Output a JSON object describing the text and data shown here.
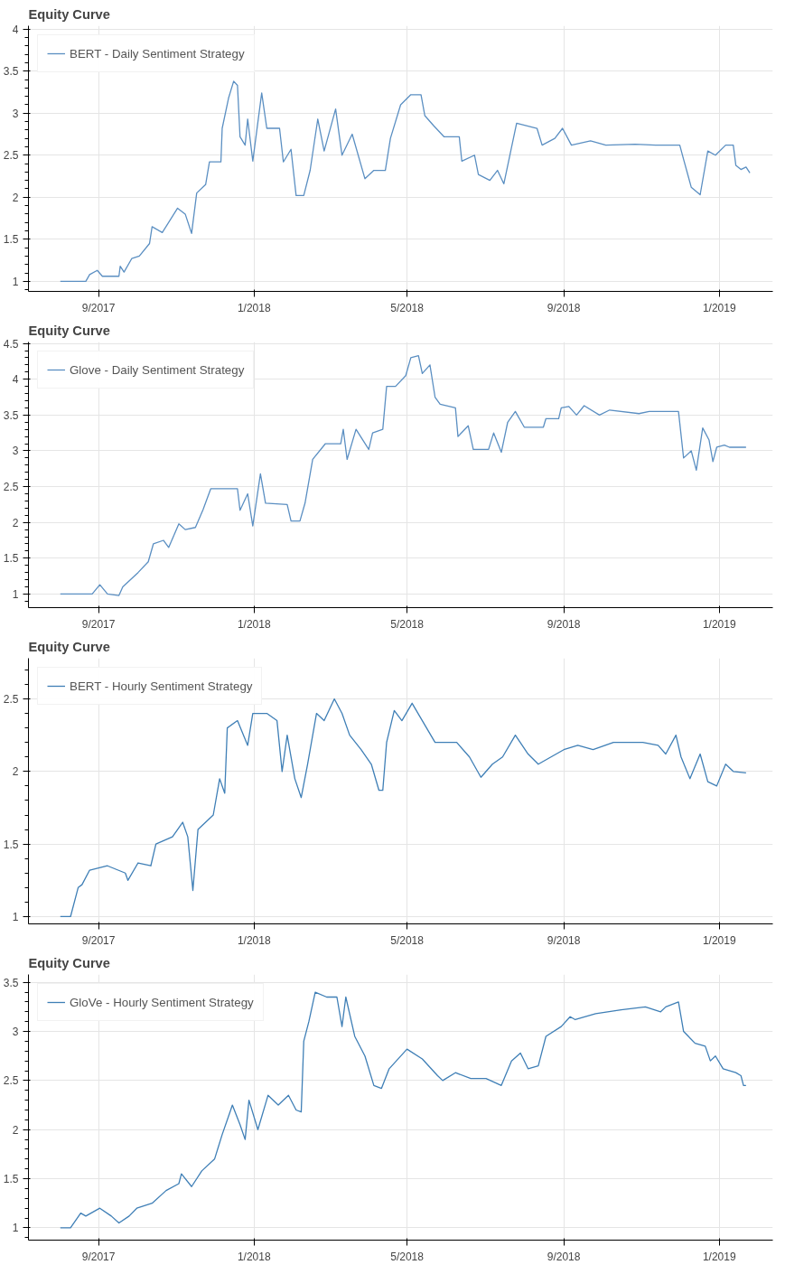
{
  "chart_data": [
    {
      "type": "line",
      "title": "Equity Curve",
      "legend": "top left",
      "grid": true,
      "xlim": [
        "2017-07-08",
        "2019-02-12"
      ],
      "ylim": [
        0.88,
        4.04
      ],
      "yticks": [
        1,
        1.5,
        2,
        2.5,
        3,
        3.5,
        4
      ],
      "xticks": [
        {
          "value": "2017-09-01",
          "label": "9/2017"
        },
        {
          "value": "2018-01-01",
          "label": "1/2018"
        },
        {
          "value": "2018-05-01",
          "label": "5/2018"
        },
        {
          "value": "2018-09-01",
          "label": "9/2018"
        },
        {
          "value": "2019-01-01",
          "label": "1/2019"
        }
      ],
      "series": [
        {
          "name": "BERT - Daily Sentiment Strategy",
          "color": "#5b8fc2",
          "x": [
            "2017-08-02",
            "2017-08-22",
            "2017-08-25",
            "2017-08-31",
            "2017-09-04",
            "2017-09-17",
            "2017-09-18",
            "2017-09-21",
            "2017-09-27",
            "2017-10-03",
            "2017-10-11",
            "2017-10-13",
            "2017-10-21",
            "2017-11-02",
            "2017-11-08",
            "2017-11-13",
            "2017-11-17",
            "2017-11-24",
            "2017-11-27",
            "2017-12-06",
            "2017-12-07",
            "2017-12-12",
            "2017-12-16",
            "2017-12-19",
            "2017-12-21",
            "2017-12-25",
            "2017-12-27",
            "2017-12-31",
            "2018-01-07",
            "2018-01-11",
            "2018-01-21",
            "2018-01-24",
            "2018-01-30",
            "2018-02-03",
            "2018-02-09",
            "2018-02-14",
            "2018-02-20",
            "2018-02-25",
            "2018-03-06",
            "2018-03-11",
            "2018-03-19",
            "2018-03-29",
            "2018-04-05",
            "2018-04-14",
            "2018-04-18",
            "2018-04-26",
            "2018-05-04",
            "2018-05-12",
            "2018-05-15",
            "2018-05-22",
            "2018-05-30",
            "2018-06-11",
            "2018-06-13",
            "2018-06-23",
            "2018-06-26",
            "2018-07-05",
            "2018-07-11",
            "2018-07-16",
            "2018-07-21",
            "2018-07-26",
            "2018-08-11",
            "2018-08-15",
            "2018-08-25",
            "2018-08-31",
            "2018-09-07",
            "2018-09-22",
            "2018-10-04",
            "2018-10-27",
            "2018-11-12",
            "2018-12-01",
            "2018-12-04",
            "2018-12-10",
            "2018-12-17",
            "2018-12-23",
            "2018-12-29",
            "2019-01-06",
            "2019-01-12",
            "2019-01-14",
            "2019-01-18",
            "2019-01-22",
            "2019-01-25"
          ],
          "values": [
            1.0,
            1.0,
            1.08,
            1.13,
            1.06,
            1.06,
            1.18,
            1.11,
            1.27,
            1.3,
            1.45,
            1.65,
            1.58,
            1.87,
            1.8,
            1.57,
            2.05,
            2.15,
            2.42,
            2.42,
            2.82,
            3.18,
            3.38,
            3.33,
            2.72,
            2.62,
            2.93,
            2.43,
            3.24,
            2.82,
            2.82,
            2.42,
            2.57,
            2.02,
            2.02,
            2.32,
            2.93,
            2.55,
            3.05,
            2.5,
            2.75,
            2.22,
            2.32,
            2.32,
            2.7,
            3.1,
            3.22,
            3.22,
            2.97,
            2.85,
            2.72,
            2.72,
            2.43,
            2.5,
            2.27,
            2.2,
            2.32,
            2.16,
            2.52,
            2.88,
            2.82,
            2.62,
            2.7,
            2.82,
            2.62,
            2.67,
            2.62,
            2.63,
            2.62,
            2.62,
            2.45,
            2.12,
            2.03,
            2.55,
            2.5,
            2.62,
            2.62,
            2.38,
            2.33,
            2.36,
            2.29
          ]
        }
      ]
    },
    {
      "type": "line",
      "title": "Equity Curve",
      "legend": "top left",
      "grid": true,
      "xlim": [
        "2017-07-08",
        "2019-02-12"
      ],
      "ylim": [
        0.81,
        4.52
      ],
      "yticks": [
        1,
        1.5,
        2,
        2.5,
        3,
        3.5,
        4,
        4.5
      ],
      "xticks": [
        {
          "value": "2017-09-01",
          "label": "9/2017"
        },
        {
          "value": "2018-01-01",
          "label": "1/2018"
        },
        {
          "value": "2018-05-01",
          "label": "5/2018"
        },
        {
          "value": "2018-09-01",
          "label": "9/2018"
        },
        {
          "value": "2019-01-01",
          "label": "1/2019"
        }
      ],
      "series": [
        {
          "name": "Glove - Daily Sentiment Strategy",
          "color": "#5b8fc2",
          "x": [
            "2017-08-02",
            "2017-08-27",
            "2017-09-02",
            "2017-09-08",
            "2017-09-17",
            "2017-09-20",
            "2017-10-02",
            "2017-10-10",
            "2017-10-14",
            "2017-10-22",
            "2017-10-26",
            "2017-11-03",
            "2017-11-08",
            "2017-11-16",
            "2017-11-22",
            "2017-11-28",
            "2017-12-19",
            "2017-12-21",
            "2017-12-27",
            "2017-12-31",
            "2018-01-06",
            "2018-01-10",
            "2018-01-27",
            "2018-01-30",
            "2018-02-06",
            "2018-02-10",
            "2018-02-16",
            "2018-02-26",
            "2018-03-10",
            "2018-03-12",
            "2018-03-15",
            "2018-03-22",
            "2018-04-01",
            "2018-04-04",
            "2018-04-12",
            "2018-04-15",
            "2018-04-22",
            "2018-04-30",
            "2018-05-04",
            "2018-05-10",
            "2018-05-13",
            "2018-05-19",
            "2018-05-23",
            "2018-05-27",
            "2018-06-08",
            "2018-06-10",
            "2018-06-18",
            "2018-06-22",
            "2018-07-04",
            "2018-07-08",
            "2018-07-14",
            "2018-07-19",
            "2018-07-25",
            "2018-08-01",
            "2018-08-16",
            "2018-08-18",
            "2018-08-28",
            "2018-08-30",
            "2018-09-05",
            "2018-09-11",
            "2018-09-17",
            "2018-09-29",
            "2018-10-07",
            "2018-10-30",
            "2018-11-07",
            "2018-11-30",
            "2018-12-04",
            "2018-12-10",
            "2018-12-14",
            "2018-12-19",
            "2018-12-24",
            "2018-12-27",
            "2018-12-30",
            "2019-01-05",
            "2019-01-09",
            "2019-01-22"
          ],
          "values": [
            1.0,
            1.0,
            1.13,
            1.0,
            0.98,
            1.1,
            1.3,
            1.45,
            1.7,
            1.75,
            1.65,
            1.98,
            1.9,
            1.93,
            2.18,
            2.47,
            2.47,
            2.17,
            2.4,
            1.95,
            2.68,
            2.27,
            2.25,
            2.02,
            2.02,
            2.27,
            2.88,
            3.1,
            3.1,
            3.3,
            2.88,
            3.3,
            3.02,
            3.25,
            3.3,
            3.9,
            3.9,
            4.05,
            4.3,
            4.33,
            4.08,
            4.2,
            3.75,
            3.65,
            3.6,
            3.2,
            3.35,
            3.02,
            3.02,
            3.25,
            2.98,
            3.4,
            3.55,
            3.33,
            3.33,
            3.45,
            3.45,
            3.6,
            3.62,
            3.5,
            3.63,
            3.5,
            3.57,
            3.52,
            3.55,
            3.55,
            2.9,
            3.0,
            2.73,
            3.32,
            3.15,
            2.85,
            3.05,
            3.08,
            3.05,
            3.05
          ]
        }
      ]
    },
    {
      "type": "line",
      "title": "Equity Curve",
      "legend": "top left",
      "grid": true,
      "xlim": [
        "2017-07-08",
        "2019-02-12"
      ],
      "ylim": [
        0.95,
        2.78
      ],
      "yticks": [
        1,
        1.5,
        2,
        2.5
      ],
      "xticks": [
        {
          "value": "2017-09-01",
          "label": "9/2017"
        },
        {
          "value": "2018-01-01",
          "label": "1/2018"
        },
        {
          "value": "2018-05-01",
          "label": "5/2018"
        },
        {
          "value": "2018-09-01",
          "label": "9/2018"
        },
        {
          "value": "2019-01-01",
          "label": "1/2019"
        }
      ],
      "series": [
        {
          "name": "BERT - Hourly Sentiment Strategy",
          "color": "#3f7fb6",
          "x": [
            "2017-08-02",
            "2017-08-10",
            "2017-08-16",
            "2017-08-19",
            "2017-08-25",
            "2017-09-08",
            "2017-09-22",
            "2017-09-24",
            "2017-10-02",
            "2017-10-12",
            "2017-10-16",
            "2017-10-29",
            "2017-11-06",
            "2017-11-10",
            "2017-11-14",
            "2017-11-18",
            "2017-11-30",
            "2017-12-05",
            "2017-12-09",
            "2017-12-11",
            "2017-12-19",
            "2017-12-27",
            "2017-12-31",
            "2018-01-11",
            "2018-01-19",
            "2018-01-23",
            "2018-01-27",
            "2018-02-02",
            "2018-02-07",
            "2018-02-12",
            "2018-02-19",
            "2018-02-25",
            "2018-03-05",
            "2018-03-11",
            "2018-03-17",
            "2018-03-26",
            "2018-04-03",
            "2018-04-09",
            "2018-04-12",
            "2018-04-15",
            "2018-04-21",
            "2018-04-27",
            "2018-05-05",
            "2018-05-13",
            "2018-05-23",
            "2018-06-09",
            "2018-06-19",
            "2018-06-28",
            "2018-07-07",
            "2018-07-15",
            "2018-07-25",
            "2018-08-04",
            "2018-08-12",
            "2018-08-22",
            "2018-09-01",
            "2018-09-12",
            "2018-09-24",
            "2018-10-10",
            "2018-11-02",
            "2018-11-14",
            "2018-11-20",
            "2018-11-28",
            "2018-12-02",
            "2018-12-09",
            "2018-12-17",
            "2018-12-23",
            "2018-12-30",
            "2019-01-06",
            "2019-01-12",
            "2019-01-22"
          ],
          "values": [
            1.0,
            1.0,
            1.2,
            1.22,
            1.32,
            1.35,
            1.3,
            1.25,
            1.37,
            1.35,
            1.5,
            1.55,
            1.65,
            1.55,
            1.18,
            1.6,
            1.7,
            1.95,
            1.85,
            2.3,
            2.35,
            2.18,
            2.4,
            2.4,
            2.35,
            2.0,
            2.25,
            1.95,
            1.82,
            2.05,
            2.4,
            2.35,
            2.5,
            2.4,
            2.25,
            2.15,
            2.05,
            1.87,
            1.87,
            2.2,
            2.42,
            2.35,
            2.47,
            2.35,
            2.2,
            2.2,
            2.1,
            1.96,
            2.05,
            2.1,
            2.25,
            2.12,
            2.05,
            2.1,
            2.15,
            2.18,
            2.15,
            2.2,
            2.2,
            2.18,
            2.12,
            2.25,
            2.1,
            1.95,
            2.12,
            1.93,
            1.9,
            2.05,
            2.0,
            1.99
          ]
        }
      ]
    },
    {
      "type": "line",
      "title": "Equity Curve",
      "legend": "top left",
      "grid": true,
      "xlim": [
        "2017-07-08",
        "2019-02-12"
      ],
      "ylim": [
        0.875,
        3.58
      ],
      "yticks": [
        1,
        1.5,
        2,
        2.5,
        3,
        3.5
      ],
      "xticks": [
        {
          "value": "2017-09-01",
          "label": "9/2017"
        },
        {
          "value": "2018-01-01",
          "label": "1/2018"
        },
        {
          "value": "2018-05-01",
          "label": "5/2018"
        },
        {
          "value": "2018-09-01",
          "label": "9/2018"
        },
        {
          "value": "2019-01-01",
          "label": "1/2019"
        }
      ],
      "series": [
        {
          "name": "GloVe - Hourly Sentiment Strategy",
          "color": "#3f7fb6",
          "x": [
            "2017-08-02",
            "2017-08-10",
            "2017-08-18",
            "2017-08-22",
            "2017-09-02",
            "2017-09-11",
            "2017-09-17",
            "2017-09-25",
            "2017-10-01",
            "2017-10-13",
            "2017-10-24",
            "2017-11-03",
            "2017-11-05",
            "2017-11-13",
            "2017-11-21",
            "2017-12-01",
            "2017-12-07",
            "2017-12-15",
            "2017-12-21",
            "2017-12-25",
            "2017-12-28",
            "2018-01-04",
            "2018-01-12",
            "2018-01-20",
            "2018-01-28",
            "2018-02-03",
            "2018-02-07",
            "2018-02-09",
            "2018-02-13",
            "2018-02-18",
            "2018-02-27",
            "2018-03-07",
            "2018-03-11",
            "2018-03-14",
            "2018-03-21",
            "2018-03-29",
            "2018-04-05",
            "2018-04-11",
            "2018-04-17",
            "2018-05-01",
            "2018-05-13",
            "2018-05-25",
            "2018-05-29",
            "2018-06-08",
            "2018-06-20",
            "2018-07-02",
            "2018-07-14",
            "2018-07-22",
            "2018-07-29",
            "2018-08-04",
            "2018-08-12",
            "2018-08-18",
            "2018-08-30",
            "2018-09-06",
            "2018-09-10",
            "2018-09-26",
            "2018-10-16",
            "2018-11-04",
            "2018-11-16",
            "2018-11-20",
            "2018-11-30",
            "2018-12-04",
            "2018-12-13",
            "2018-12-21",
            "2018-12-25",
            "2018-12-29",
            "2019-01-04",
            "2019-01-14",
            "2019-01-18",
            "2019-01-20",
            "2019-01-22"
          ],
          "values": [
            1.0,
            1.0,
            1.15,
            1.12,
            1.2,
            1.12,
            1.05,
            1.12,
            1.2,
            1.25,
            1.38,
            1.45,
            1.55,
            1.42,
            1.58,
            1.7,
            1.95,
            2.25,
            2.05,
            1.9,
            2.3,
            2.0,
            2.35,
            2.25,
            2.35,
            2.2,
            2.18,
            2.9,
            3.1,
            3.4,
            3.35,
            3.35,
            3.05,
            3.35,
            2.95,
            2.75,
            2.45,
            2.42,
            2.62,
            2.82,
            2.72,
            2.55,
            2.5,
            2.58,
            2.52,
            2.52,
            2.45,
            2.7,
            2.78,
            2.62,
            2.65,
            2.95,
            3.05,
            3.15,
            3.12,
            3.18,
            3.22,
            3.25,
            3.2,
            3.25,
            3.3,
            3.0,
            2.88,
            2.85,
            2.7,
            2.75,
            2.62,
            2.58,
            2.55,
            2.45,
            2.45
          ]
        }
      ]
    }
  ]
}
